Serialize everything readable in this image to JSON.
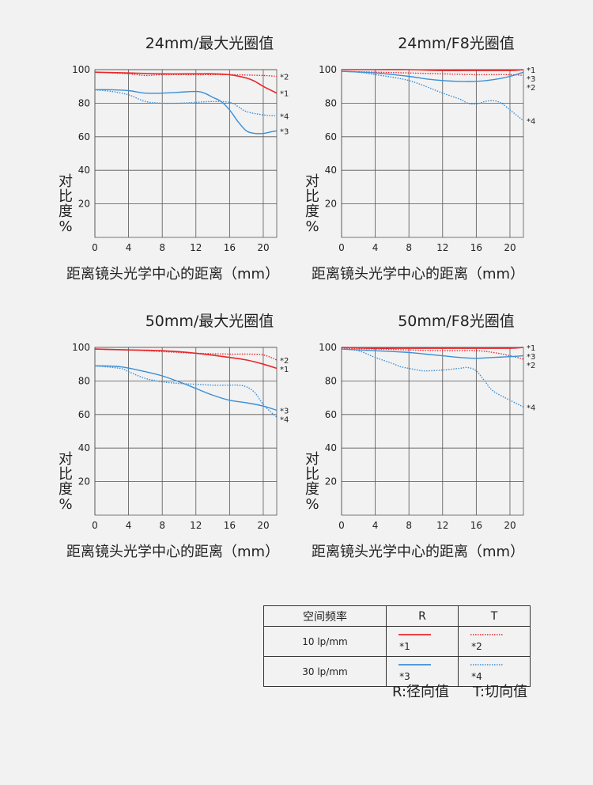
{
  "charts": [
    {
      "title": "24mm/最大光圈值",
      "ylabel": "对比度%",
      "xlabel": "距离镜头光学中心的距离（mm）"
    },
    {
      "title": "24mm/F8光圈值",
      "ylabel": "对比度%",
      "xlabel": "距离镜头光学中心的距离（mm）"
    },
    {
      "title": "50mm/最大光圈值",
      "ylabel": "对比度%",
      "xlabel": "距离镜头光学中心的距离（mm）"
    },
    {
      "title": "50mm/F8光圈值",
      "ylabel": "对比度%",
      "xlabel": "距离镜头光学中心的距离（mm）"
    }
  ],
  "legend": {
    "header": "空间频率",
    "r_label": "R",
    "t_label": "T",
    "rows": [
      {
        "freq": "10 lp/mm",
        "r_mark": "*1",
        "t_mark": "*2"
      },
      {
        "freq": "30 lp/mm",
        "r_mark": "*3",
        "t_mark": "*4"
      }
    ]
  },
  "footnote": {
    "r": "R:径向值",
    "t": "T:切向值"
  },
  "colors": {
    "r10": "#e8272a",
    "t10": "#e8272a",
    "r30": "#3a8fd6",
    "t30": "#3a8fd6",
    "grid": "#555555"
  },
  "chart_data": [
    {
      "type": "line",
      "title": "24mm/最大光圈值",
      "xlabel": "距离镜头光学中心的距离（mm）",
      "ylabel": "对比度%",
      "xlim": [
        0,
        21.6
      ],
      "ylim": [
        0,
        100
      ],
      "xticks": [
        0,
        4,
        8,
        12,
        16,
        20
      ],
      "yticks": [
        20,
        40,
        60,
        80,
        100
      ],
      "series": [
        {
          "name": "*1",
          "x": [
            0,
            4,
            8,
            12,
            14,
            16,
            18,
            19,
            20,
            21.6
          ],
          "y": [
            98.5,
            98,
            97.5,
            97.5,
            97.5,
            97,
            95,
            93,
            90,
            86
          ]
        },
        {
          "name": "*2",
          "x": [
            0,
            4,
            6,
            8,
            12,
            16,
            20,
            21.6
          ],
          "y": [
            98.5,
            97.5,
            96.5,
            97,
            97,
            97,
            96.5,
            96
          ]
        },
        {
          "name": "*3",
          "x": [
            0,
            2,
            4,
            6,
            8,
            10,
            12,
            13,
            14,
            15,
            16,
            17,
            18,
            19,
            20,
            21,
            21.6
          ],
          "y": [
            88,
            88,
            87.5,
            86,
            86,
            86.5,
            87,
            86,
            83.5,
            81,
            76,
            69,
            63.5,
            62,
            62,
            63,
            63.5
          ]
        },
        {
          "name": "*4",
          "x": [
            0,
            2,
            4,
            6,
            8,
            10,
            12,
            14,
            16,
            17,
            18,
            20,
            21.6
          ],
          "y": [
            88,
            87,
            85,
            81,
            80,
            80,
            80.5,
            81,
            80.5,
            78,
            75,
            73,
            72.5
          ]
        }
      ]
    },
    {
      "type": "line",
      "title": "24mm/F8光圈值",
      "xlabel": "距离镜头光学中心的距离（mm）",
      "ylabel": "对比度%",
      "xlim": [
        0,
        21.6
      ],
      "ylim": [
        0,
        100
      ],
      "xticks": [
        0,
        4,
        8,
        12,
        16,
        20
      ],
      "yticks": [
        20,
        40,
        60,
        80,
        100
      ],
      "series": [
        {
          "name": "*1",
          "x": [
            0,
            4,
            8,
            12,
            16,
            20,
            21.6
          ],
          "y": [
            100,
            100,
            100,
            99.5,
            99.5,
            99.5,
            100
          ]
        },
        {
          "name": "*2",
          "x": [
            0,
            4,
            8,
            12,
            16,
            20,
            21.6
          ],
          "y": [
            99,
            98.5,
            98,
            97.5,
            97,
            97,
            96.5
          ]
        },
        {
          "name": "*3",
          "x": [
            0,
            4,
            8,
            10,
            12,
            14,
            16,
            18,
            20,
            21.6
          ],
          "y": [
            99,
            98,
            96,
            94.5,
            93.5,
            93,
            93,
            94,
            96,
            98.5
          ]
        },
        {
          "name": "*4",
          "x": [
            0,
            2,
            4,
            6,
            8,
            10,
            12,
            14,
            15,
            16,
            17,
            18,
            19,
            20,
            21,
            21.6
          ],
          "y": [
            99,
            98.5,
            97,
            95.5,
            93.5,
            90,
            86,
            82.5,
            80,
            79.5,
            81,
            81.5,
            80,
            76,
            72,
            69.5
          ]
        }
      ]
    },
    {
      "type": "line",
      "title": "50mm/最大光圈值",
      "xlabel": "距离镜头光学中心的距离（mm）",
      "ylabel": "对比度%",
      "xlim": [
        0,
        21.6
      ],
      "ylim": [
        0,
        100
      ],
      "xticks": [
        0,
        4,
        8,
        12,
        16,
        20
      ],
      "yticks": [
        20,
        40,
        60,
        80,
        100
      ],
      "series": [
        {
          "name": "*1",
          "x": [
            0,
            4,
            8,
            12,
            16,
            18,
            20,
            21.6
          ],
          "y": [
            99,
            98.5,
            98,
            96.5,
            94,
            92.5,
            90,
            87.5
          ]
        },
        {
          "name": "*2",
          "x": [
            0,
            4,
            8,
            12,
            16,
            18,
            20,
            21.6
          ],
          "y": [
            99,
            98.5,
            97.5,
            96.5,
            96,
            96,
            95.5,
            92.5
          ]
        },
        {
          "name": "*3",
          "x": [
            0,
            3,
            6,
            8,
            10,
            12,
            14,
            16,
            18,
            20,
            21.6
          ],
          "y": [
            89,
            88.5,
            85.5,
            83,
            79.5,
            75.5,
            71.5,
            68.5,
            67,
            65,
            62.5
          ]
        },
        {
          "name": "*4",
          "x": [
            0,
            3,
            4,
            6,
            8,
            10,
            12,
            14,
            16,
            17,
            18,
            19,
            20,
            21,
            21.6
          ],
          "y": [
            89,
            87.5,
            85.5,
            81.5,
            79.5,
            78.5,
            78,
            77.5,
            77.5,
            77.5,
            76.5,
            73,
            66,
            61,
            58.5
          ]
        }
      ]
    },
    {
      "type": "line",
      "title": "50mm/F8光圈值",
      "xlabel": "距离镜头光学中心的距离（mm）",
      "ylabel": "对比度%",
      "xlim": [
        0,
        21.6
      ],
      "ylim": [
        0,
        100
      ],
      "xticks": [
        0,
        4,
        8,
        12,
        16,
        20
      ],
      "yticks": [
        20,
        40,
        60,
        80,
        100
      ],
      "series": [
        {
          "name": "*1",
          "x": [
            0,
            4,
            8,
            12,
            16,
            20,
            21.6
          ],
          "y": [
            100,
            99.5,
            99.5,
            99.5,
            99.5,
            99.5,
            100
          ]
        },
        {
          "name": "*2",
          "x": [
            0,
            4,
            8,
            12,
            16,
            18,
            20,
            21.6
          ],
          "y": [
            99.5,
            99,
            98.5,
            98,
            98,
            97,
            95,
            93
          ]
        },
        {
          "name": "*3",
          "x": [
            0,
            4,
            8,
            10,
            12,
            14,
            16,
            18,
            20,
            21.6
          ],
          "y": [
            99,
            98,
            97,
            96,
            95,
            94,
            93.5,
            94,
            94.5,
            95
          ]
        },
        {
          "name": "*4",
          "x": [
            0,
            2,
            4,
            6,
            7,
            8,
            9,
            10,
            12,
            14,
            15,
            16,
            17,
            18,
            20,
            21.6
          ],
          "y": [
            99,
            98,
            94,
            90.5,
            88.5,
            87.5,
            86.5,
            86,
            86.5,
            87.5,
            88,
            86,
            80,
            74,
            68.5,
            64.5
          ]
        }
      ]
    }
  ]
}
